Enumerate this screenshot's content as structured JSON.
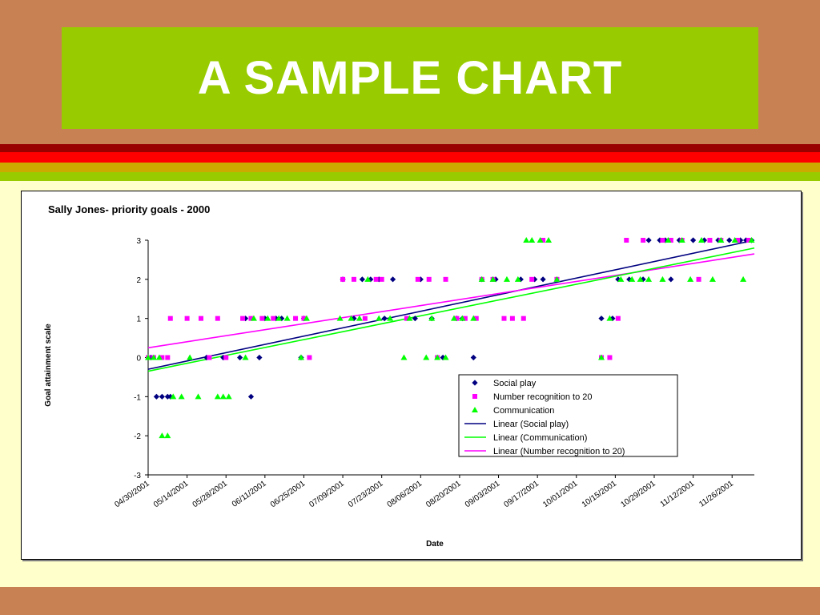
{
  "slide": {
    "title": "A SAMPLE CHART",
    "colors": {
      "background": "#c78153",
      "title_box": "#99cc00",
      "title_text": "#ffffff",
      "content_area": "#ffffcc",
      "stripes": [
        "#990000",
        "#ff0000",
        "#ccaa00",
        "#99cc00"
      ]
    }
  },
  "chart_data": {
    "type": "scatter",
    "title": "Sally Jones- priority goals - 2000",
    "xlabel": "Date",
    "ylabel": "Goal attainment scale",
    "ylim": [
      -3,
      3
    ],
    "yticks": [
      -3,
      -2,
      -1,
      0,
      1,
      2,
      3
    ],
    "xlim": [
      "04/30/2001",
      "12/04/2001"
    ],
    "xticks": [
      "04/30/2001",
      "05/14/2001",
      "05/28/2001",
      "06/11/2001",
      "06/25/2001",
      "07/09/2001",
      "07/23/2001",
      "08/06/2001",
      "08/20/2001",
      "09/03/2001",
      "09/17/2001",
      "10/01/2001",
      "10/15/2001",
      "10/29/2001",
      "11/12/2001",
      "11/26/2001"
    ],
    "grid": false,
    "legend_position": "bottom-right",
    "series": [
      {
        "name": "Social play",
        "marker": "diamond",
        "color": "#000080",
        "points": [
          [
            "05/01/2001",
            0
          ],
          [
            "05/03/2001",
            -1
          ],
          [
            "05/05/2001",
            -1
          ],
          [
            "05/07/2001",
            -1
          ],
          [
            "05/08/2001",
            -1
          ],
          [
            "05/21/2001",
            0
          ],
          [
            "05/27/2001",
            0
          ],
          [
            "06/02/2001",
            0
          ],
          [
            "06/04/2001",
            1
          ],
          [
            "06/06/2001",
            -1
          ],
          [
            "06/09/2001",
            0
          ],
          [
            "06/11/2001",
            1
          ],
          [
            "06/15/2001",
            1
          ],
          [
            "06/17/2001",
            1
          ],
          [
            "06/24/2001",
            0
          ],
          [
            "06/25/2001",
            1
          ],
          [
            "07/09/2001",
            2
          ],
          [
            "07/13/2001",
            1
          ],
          [
            "07/16/2001",
            2
          ],
          [
            "07/19/2001",
            2
          ],
          [
            "07/22/2001",
            2
          ],
          [
            "07/24/2001",
            1
          ],
          [
            "07/27/2001",
            2
          ],
          [
            "08/04/2001",
            1
          ],
          [
            "08/06/2001",
            2
          ],
          [
            "08/10/2001",
            1
          ],
          [
            "08/14/2001",
            0
          ],
          [
            "08/19/2001",
            1
          ],
          [
            "08/21/2001",
            1
          ],
          [
            "08/25/2001",
            0
          ],
          [
            "08/28/2001",
            2
          ],
          [
            "09/02/2001",
            2
          ],
          [
            "09/11/2001",
            2
          ],
          [
            "09/16/2001",
            2
          ],
          [
            "09/19/2001",
            2
          ],
          [
            "10/10/2001",
            1
          ],
          [
            "10/14/2001",
            1
          ],
          [
            "10/16/2001",
            2
          ],
          [
            "10/20/2001",
            2
          ],
          [
            "10/25/2001",
            2
          ],
          [
            "10/27/2001",
            3
          ],
          [
            "10/31/2001",
            3
          ],
          [
            "11/02/2001",
            3
          ],
          [
            "11/04/2001",
            2
          ],
          [
            "11/07/2001",
            3
          ],
          [
            "11/12/2001",
            3
          ],
          [
            "11/16/2001",
            3
          ],
          [
            "11/21/2001",
            3
          ],
          [
            "11/25/2001",
            3
          ],
          [
            "11/29/2001",
            3
          ],
          [
            "12/01/2001",
            3
          ],
          [
            "12/03/2001",
            3
          ]
        ],
        "trendline": {
          "name": "Linear (Social play)",
          "type": "linear",
          "color": "#000080",
          "start": [
            "04/30/2001",
            -0.3
          ],
          "end": [
            "12/04/2001",
            3.0
          ]
        }
      },
      {
        "name": "Number recognition to 20",
        "marker": "square",
        "color": "#ff00ff",
        "points": [
          [
            "04/30/2001",
            0
          ],
          [
            "05/02/2001",
            0
          ],
          [
            "05/05/2001",
            0
          ],
          [
            "05/07/2001",
            0
          ],
          [
            "05/08/2001",
            1
          ],
          [
            "05/14/2001",
            1
          ],
          [
            "05/19/2001",
            1
          ],
          [
            "05/22/2001",
            0
          ],
          [
            "05/25/2001",
            1
          ],
          [
            "05/28/2001",
            0
          ],
          [
            "06/03/2001",
            1
          ],
          [
            "06/06/2001",
            1
          ],
          [
            "06/10/2001",
            1
          ],
          [
            "06/14/2001",
            1
          ],
          [
            "06/22/2001",
            1
          ],
          [
            "06/25/2001",
            1
          ],
          [
            "06/27/2001",
            0
          ],
          [
            "07/09/2001",
            2
          ],
          [
            "07/13/2001",
            2
          ],
          [
            "07/17/2001",
            1
          ],
          [
            "07/21/2001",
            2
          ],
          [
            "07/23/2001",
            2
          ],
          [
            "08/01/2001",
            1
          ],
          [
            "08/05/2001",
            2
          ],
          [
            "08/09/2001",
            2
          ],
          [
            "08/12/2001",
            0
          ],
          [
            "08/15/2001",
            2
          ],
          [
            "08/19/2001",
            1
          ],
          [
            "08/22/2001",
            1
          ],
          [
            "08/26/2001",
            1
          ],
          [
            "08/28/2001",
            2
          ],
          [
            "09/01/2001",
            2
          ],
          [
            "09/05/2001",
            1
          ],
          [
            "09/08/2001",
            1
          ],
          [
            "09/12/2001",
            1
          ],
          [
            "09/15/2001",
            2
          ],
          [
            "09/19/2001",
            3
          ],
          [
            "09/24/2001",
            2
          ],
          [
            "10/10/2001",
            0
          ],
          [
            "10/13/2001",
            0
          ],
          [
            "10/16/2001",
            1
          ],
          [
            "10/19/2001",
            3
          ],
          [
            "10/25/2001",
            3
          ],
          [
            "11/01/2001",
            3
          ],
          [
            "11/04/2001",
            3
          ],
          [
            "11/08/2001",
            3
          ],
          [
            "11/14/2001",
            2
          ],
          [
            "11/18/2001",
            3
          ],
          [
            "11/22/2001",
            3
          ],
          [
            "11/28/2001",
            3
          ],
          [
            "12/02/2001",
            3
          ]
        ],
        "trendline": {
          "name": "Linear (Number recognition to 20)",
          "type": "linear",
          "color": "#ff00ff",
          "start": [
            "04/30/2001",
            0.25
          ],
          "end": [
            "12/04/2001",
            2.65
          ]
        }
      },
      {
        "name": "Communication",
        "marker": "triangle",
        "color": "#00ff00",
        "points": [
          [
            "04/30/2001",
            0
          ],
          [
            "05/02/2001",
            0
          ],
          [
            "05/04/2001",
            0
          ],
          [
            "05/05/2001",
            -2
          ],
          [
            "05/07/2001",
            -2
          ],
          [
            "05/09/2001",
            -1
          ],
          [
            "05/12/2001",
            -1
          ],
          [
            "05/15/2001",
            0
          ],
          [
            "05/18/2001",
            -1
          ],
          [
            "05/25/2001",
            -1
          ],
          [
            "05/27/2001",
            -1
          ],
          [
            "05/29/2001",
            -1
          ],
          [
            "06/04/2001",
            0
          ],
          [
            "06/07/2001",
            1
          ],
          [
            "06/12/2001",
            1
          ],
          [
            "06/16/2001",
            1
          ],
          [
            "06/19/2001",
            1
          ],
          [
            "06/24/2001",
            0
          ],
          [
            "06/26/2001",
            1
          ],
          [
            "07/08/2001",
            1
          ],
          [
            "07/12/2001",
            1
          ],
          [
            "07/15/2001",
            1
          ],
          [
            "07/18/2001",
            2
          ],
          [
            "07/22/2001",
            1
          ],
          [
            "07/26/2001",
            1
          ],
          [
            "07/31/2001",
            0
          ],
          [
            "08/02/2001",
            1
          ],
          [
            "08/08/2001",
            0
          ],
          [
            "08/10/2001",
            1
          ],
          [
            "08/12/2001",
            0
          ],
          [
            "08/15/2001",
            0
          ],
          [
            "08/18/2001",
            1
          ],
          [
            "08/21/2001",
            1
          ],
          [
            "08/25/2001",
            1
          ],
          [
            "08/28/2001",
            2
          ],
          [
            "09/01/2001",
            2
          ],
          [
            "09/06/2001",
            2
          ],
          [
            "09/10/2001",
            2
          ],
          [
            "09/13/2001",
            3
          ],
          [
            "09/15/2001",
            3
          ],
          [
            "09/18/2001",
            3
          ],
          [
            "09/21/2001",
            3
          ],
          [
            "09/24/2001",
            2
          ],
          [
            "10/10/2001",
            0
          ],
          [
            "10/13/2001",
            1
          ],
          [
            "10/17/2001",
            2
          ],
          [
            "10/21/2001",
            2
          ],
          [
            "10/24/2001",
            2
          ],
          [
            "10/27/2001",
            2
          ],
          [
            "11/01/2001",
            2
          ],
          [
            "11/03/2001",
            3
          ],
          [
            "11/08/2001",
            3
          ],
          [
            "11/11/2001",
            2
          ],
          [
            "11/15/2001",
            3
          ],
          [
            "11/19/2001",
            2
          ],
          [
            "11/22/2001",
            3
          ],
          [
            "11/27/2001",
            3
          ],
          [
            "11/30/2001",
            2
          ],
          [
            "12/03/2001",
            3
          ]
        ],
        "trendline": {
          "name": "Linear (Communication)",
          "type": "linear",
          "color": "#00ff00",
          "start": [
            "04/30/2001",
            -0.35
          ],
          "end": [
            "12/04/2001",
            2.8
          ]
        }
      }
    ]
  }
}
